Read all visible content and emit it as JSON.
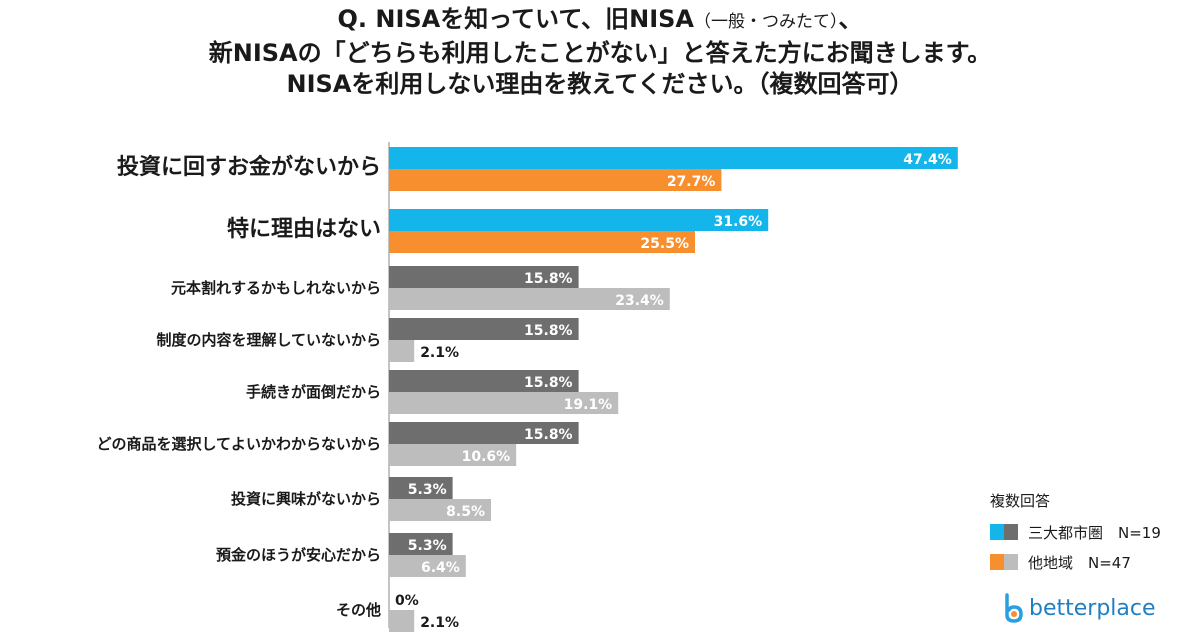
{
  "title": {
    "line1_a": "Q. NISAを知っていて、旧NISA",
    "line1_b": "（一般・つみたて）",
    "line1_c": "、",
    "line2": "新NISAの「どちらも利用したことがない」と答えた方にお聞きします。",
    "line3": "NISAを利用しない理由を教えてください。（複数回答可）"
  },
  "legend": {
    "title": "複数回答",
    "items": [
      {
        "label": "三大都市圏　N=19",
        "colors": [
          "#13b5ea",
          "#6e6e6e"
        ]
      },
      {
        "label": "他地域　N=47",
        "colors": [
          "#f78f2e",
          "#bdbdbd"
        ]
      }
    ]
  },
  "logo": {
    "text": "betterplace"
  },
  "chart_data": {
    "type": "bar",
    "orientation": "horizontal",
    "categories": [
      "投資に回すお金がないから",
      "特に理由はない",
      "元本割れするかもしれないから",
      "制度の内容を理解していないから",
      "手続きが面倒だから",
      "どの商品を選択してよいかわからないから",
      "投資に興味がないから",
      "預金のほうが安心だから",
      "その他"
    ],
    "series": [
      {
        "name": "三大都市圏　N=19",
        "values": [
          47.4,
          31.6,
          15.8,
          15.8,
          15.8,
          15.8,
          5.3,
          5.3,
          0
        ]
      },
      {
        "name": "他地域　N=47",
        "values": [
          27.7,
          25.5,
          23.4,
          2.1,
          19.1,
          10.6,
          8.5,
          6.4,
          2.1
        ]
      }
    ],
    "value_labels": [
      [
        "47.4%",
        "31.6%",
        "15.8%",
        "15.8%",
        "15.8%",
        "15.8%",
        "5.3%",
        "5.3%",
        "0%"
      ],
      [
        "27.7%",
        "25.5%",
        "23.4%",
        "2.1%",
        "19.1%",
        "10.6%",
        "8.5%",
        "6.4%",
        "2.1%"
      ]
    ],
    "highlighted_categories": 2,
    "colors": {
      "series1_highlight": "#13b5ea",
      "series2_highlight": "#f78f2e",
      "series1": "#6e6e6e",
      "series2": "#bdbdbd"
    },
    "xlim": [
      0,
      50
    ],
    "grid": false,
    "legend_position": "bottom-right"
  }
}
